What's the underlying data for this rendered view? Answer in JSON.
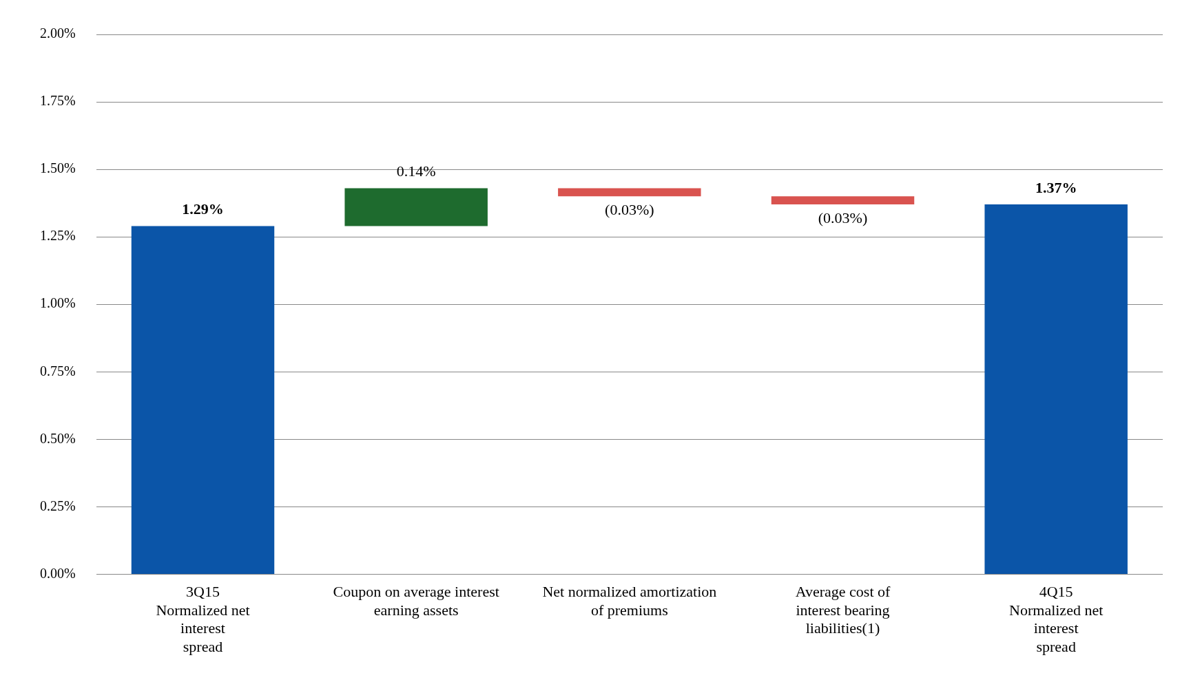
{
  "chart_data": {
    "type": "bar",
    "categories": [
      "3Q15\nNormalized net\ninterest\nspread",
      "Coupon on average interest\nearning assets",
      "Net normalized amortization\nof premiums",
      "Average cost of\ninterest bearing\nliabilities(1)",
      "4Q15\nNormalized net\ninterest\nspread"
    ],
    "values": [
      1.29,
      0.14,
      -0.03,
      -0.03,
      1.37
    ],
    "base": [
      0,
      1.29,
      1.43,
      1.4,
      0
    ],
    "colors": [
      "#0b55a8",
      "#1e6b2e",
      "#d9534f",
      "#d9534f",
      "#0b55a8"
    ],
    "value_labels": [
      "1.29%",
      "0.14%",
      "(0.03%)",
      "(0.03%)",
      "1.37%"
    ],
    "ylim": [
      0,
      2
    ],
    "yticks": [
      {
        "value": 0,
        "label": "0.00%"
      },
      {
        "value": 0.25,
        "label": "0.25%"
      },
      {
        "value": 0.5,
        "label": "0.50%"
      },
      {
        "value": 0.75,
        "label": "0.75%"
      },
      {
        "value": 1,
        "label": "1.00%"
      },
      {
        "value": 1.25,
        "label": "1.25%"
      },
      {
        "value": 1.5,
        "label": "1.50%"
      },
      {
        "value": 1.75,
        "label": "1.75%"
      },
      {
        "value": 2,
        "label": "2.00%"
      }
    ],
    "grid": "y"
  }
}
